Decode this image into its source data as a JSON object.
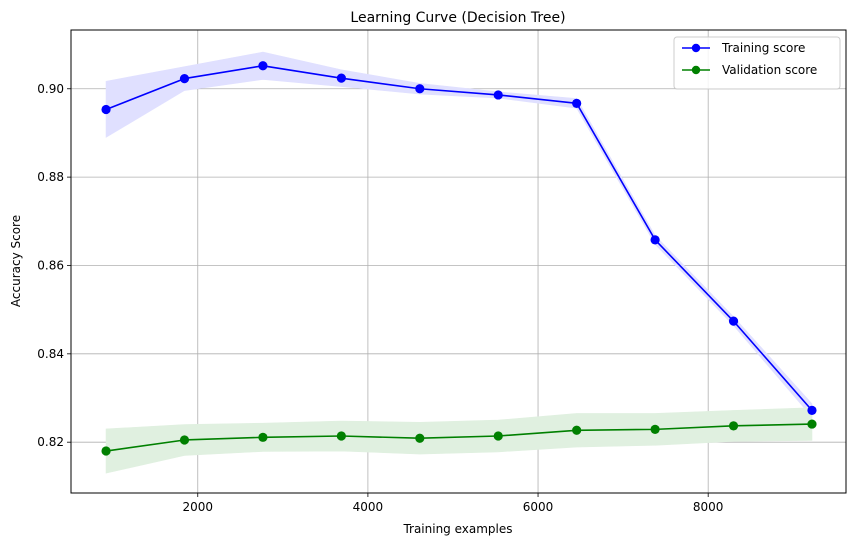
{
  "chart_data": {
    "type": "line",
    "title": "Learning Curve (Decision Tree)",
    "xlabel": "Training examples",
    "ylabel": "Accuracy Score",
    "xlim": [
      510,
      9620
    ],
    "ylim": [
      0.8085,
      0.9133
    ],
    "grid": true,
    "legend_position": "top-right",
    "x_ticks": [
      2000,
      4000,
      6000,
      8000
    ],
    "y_ticks": [
      0.82,
      0.84,
      0.86,
      0.88,
      0.9
    ],
    "x_tick_labels": [
      "2000",
      "4000",
      "6000",
      "8000"
    ],
    "y_tick_labels": [
      "0.82",
      "0.84",
      "0.86",
      "0.88",
      "0.90"
    ],
    "x": [
      922,
      1844,
      2766,
      3688,
      4610,
      5532,
      6454,
      7376,
      8298,
      9220
    ],
    "series": [
      {
        "name": "Training score",
        "color": "#0000ff",
        "band_color": "#e0e0ff",
        "values": [
          0.8953,
          0.9023,
          0.9052,
          0.9024,
          0.9,
          0.8986,
          0.8967,
          0.8658,
          0.8474,
          0.8272
        ],
        "band_upper": [
          0.9017,
          0.905,
          0.9083,
          0.9043,
          0.9012,
          0.8993,
          0.8978,
          0.8668,
          0.8484,
          0.8287
        ],
        "band_lower": [
          0.889,
          0.8996,
          0.9021,
          0.9005,
          0.8988,
          0.8979,
          0.8956,
          0.8648,
          0.8464,
          0.8257
        ]
      },
      {
        "name": "Validation score",
        "color": "#008000",
        "band_color": "#e0f0e0",
        "values": [
          0.818,
          0.8205,
          0.8211,
          0.8214,
          0.8209,
          0.8214,
          0.8227,
          0.8229,
          0.8237,
          0.8241
        ],
        "band_upper": [
          0.823,
          0.824,
          0.8243,
          0.8248,
          0.8245,
          0.825,
          0.8265,
          0.8265,
          0.8272,
          0.8278
        ],
        "band_lower": [
          0.813,
          0.817,
          0.8179,
          0.818,
          0.8173,
          0.8178,
          0.8189,
          0.8193,
          0.8202,
          0.8204
        ]
      }
    ]
  }
}
